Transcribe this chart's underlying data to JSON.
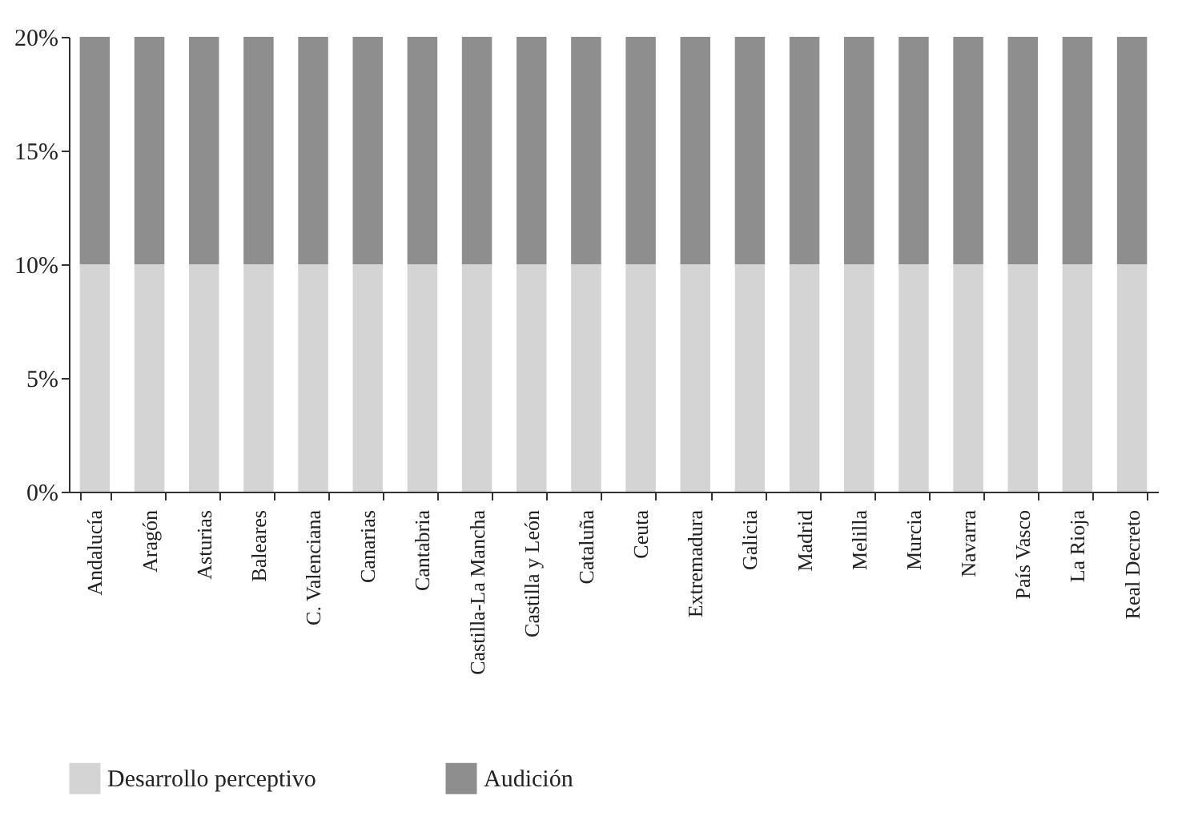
{
  "chart_data": {
    "type": "bar",
    "stacked": true,
    "categories": [
      "Andalucía",
      "Aragón",
      "Asturias",
      "Baleares",
      "C. Valenciana",
      "Canarias",
      "Cantabria",
      "Castilla-La Mancha",
      "Castilla y León",
      "Cataluña",
      "Ceuta",
      "Extremadura",
      "Galicia",
      "Madrid",
      "Melilla",
      "Murcia",
      "Navarra",
      "País Vasco",
      "La Rioja",
      "Real Decreto"
    ],
    "series": [
      {
        "name": "Desarrollo perceptivo",
        "color": "#d4d4d4",
        "values": [
          10,
          10,
          10,
          10,
          10,
          10,
          10,
          10,
          10,
          10,
          10,
          10,
          10,
          10,
          10,
          10,
          10,
          10,
          10,
          10
        ]
      },
      {
        "name": "Audición",
        "color": "#8e8e8e",
        "values": [
          10,
          10,
          10,
          10,
          10,
          10,
          10,
          10,
          10,
          10,
          10,
          10,
          10,
          10,
          10,
          10,
          10,
          10,
          10,
          10
        ]
      }
    ],
    "ylim": [
      0,
      20
    ],
    "yticks": [
      {
        "value": 0,
        "label": "0%"
      },
      {
        "value": 5,
        "label": "5%"
      },
      {
        "value": 10,
        "label": "10%"
      },
      {
        "value": 15,
        "label": "15%"
      },
      {
        "value": 20,
        "label": "20%"
      }
    ],
    "grid": false,
    "legend": "bottom"
  }
}
